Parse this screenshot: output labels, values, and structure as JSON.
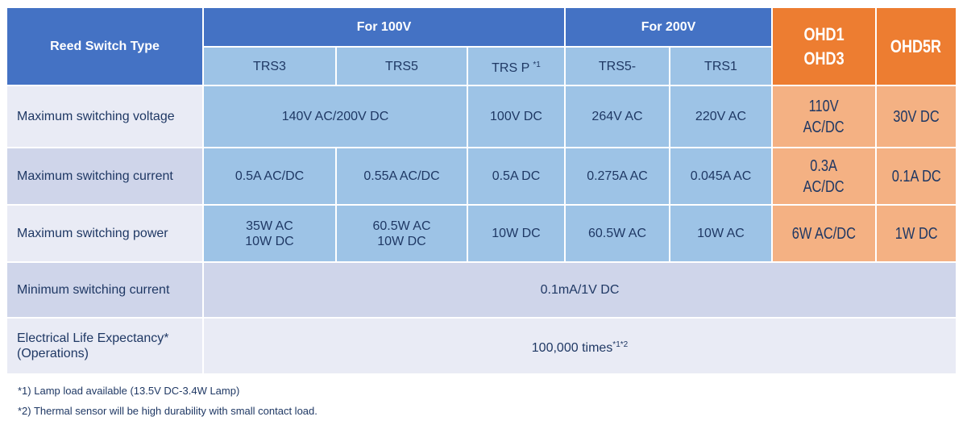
{
  "header": {
    "type_label": "Reed Switch Type",
    "group_100v": "For 100V",
    "group_200v": "For 200V",
    "ohd13": [
      "OHD1",
      "OHD3"
    ],
    "ohd5r": "OHD5R",
    "models": [
      "TRS3",
      "TRS5",
      "TRS P",
      "TRS5-",
      "TRS1"
    ],
    "trsp_note": "*1"
  },
  "rows": {
    "voltage": {
      "label": "Maximum switching voltage",
      "trs3_trs5": "140V AC/200V DC",
      "trsp": "100V DC",
      "trs5m": "264V AC",
      "trs1": "220V AC",
      "ohd13": [
        "110V",
        "AC/DC"
      ],
      "ohd5r": "30V DC"
    },
    "current": {
      "label": "Maximum switching current",
      "trs3": "0.5A AC/DC",
      "trs5": "0.55A AC/DC",
      "trsp": "0.5A DC",
      "trs5m": "0.275A AC",
      "trs1": "0.045A AC",
      "ohd13": [
        "0.3A",
        "AC/DC"
      ],
      "ohd5r": "0.1A DC"
    },
    "power": {
      "label": "Maximum switching power",
      "trs3": [
        "35W AC",
        "10W DC"
      ],
      "trs5": [
        "60.5W AC",
        "10W DC"
      ],
      "trsp": "10W DC",
      "trs5m": "60.5W AC",
      "trs1": "10W AC",
      "ohd13": "6W AC/DC",
      "ohd5r": "1W DC"
    },
    "min_current": {
      "label": "Minimum switching current",
      "value": "0.1mA/1V DC"
    },
    "life": {
      "label": [
        "Electrical Life Expectancy*",
        "(Operations)"
      ],
      "value": "100,000 times",
      "note": "*1*2"
    }
  },
  "footnotes": [
    "*1) Lamp load available (13.5V DC-3.4W Lamp)",
    "*2) Thermal sensor will be high durability with small contact load."
  ],
  "colors": {
    "header_blue": "#4472C4",
    "cell_blue": "#9DC3E6",
    "orange": "#ED7D31",
    "light_orange": "#F4B183",
    "label_light": "#E9EBF5",
    "label_dark": "#CFD5EA",
    "text": "#1F3864"
  }
}
